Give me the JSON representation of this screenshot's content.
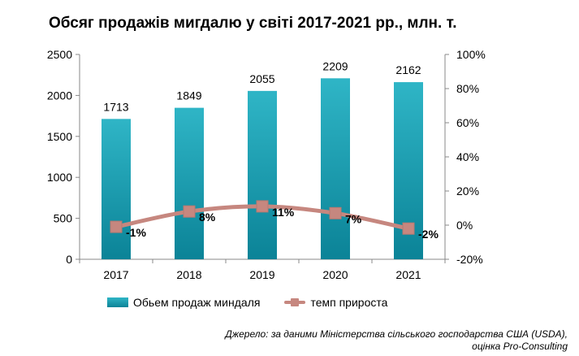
{
  "chart_data": {
    "type": "bar",
    "title": "Обсяг продажів мигдалю у світі 2017-2021 рр., млн. т.",
    "categories": [
      "2017",
      "2018",
      "2019",
      "2020",
      "2021"
    ],
    "series": [
      {
        "name": "Обьем продаж миндаля",
        "type": "bar",
        "axis": "left",
        "values": [
          1713,
          1849,
          2055,
          2209,
          2162
        ],
        "labels": [
          "1713",
          "1849",
          "2055",
          "2209",
          "2162"
        ]
      },
      {
        "name": "темп прироста",
        "type": "line",
        "axis": "right",
        "values": [
          -1,
          8,
          11,
          7,
          -2
        ],
        "labels": [
          "-1%",
          "8%",
          "11%",
          "7%",
          "-2%"
        ]
      }
    ],
    "ylim": [
      0,
      2500
    ],
    "yticks": [
      0,
      500,
      1000,
      1500,
      2000,
      2500
    ],
    "ytick_labels": [
      "0",
      "500",
      "1000",
      "1500",
      "2000",
      "2500"
    ],
    "y2lim": [
      -20,
      100
    ],
    "y2ticks": [
      -20,
      0,
      20,
      40,
      60,
      80,
      100
    ],
    "y2tick_labels": [
      "-20%",
      "0%",
      "20%",
      "40%",
      "60%",
      "80%",
      "100%"
    ],
    "grid": false,
    "legend": "bottom"
  },
  "source": {
    "line1": "Джерело: за даними Міністерства сільського господарства США (USDA),",
    "line2": "оцінка Pro-Consulting"
  },
  "colors": {
    "bar_top": "#2fb5c6",
    "bar_bottom": "#0b8397",
    "line": "#c6877f"
  }
}
